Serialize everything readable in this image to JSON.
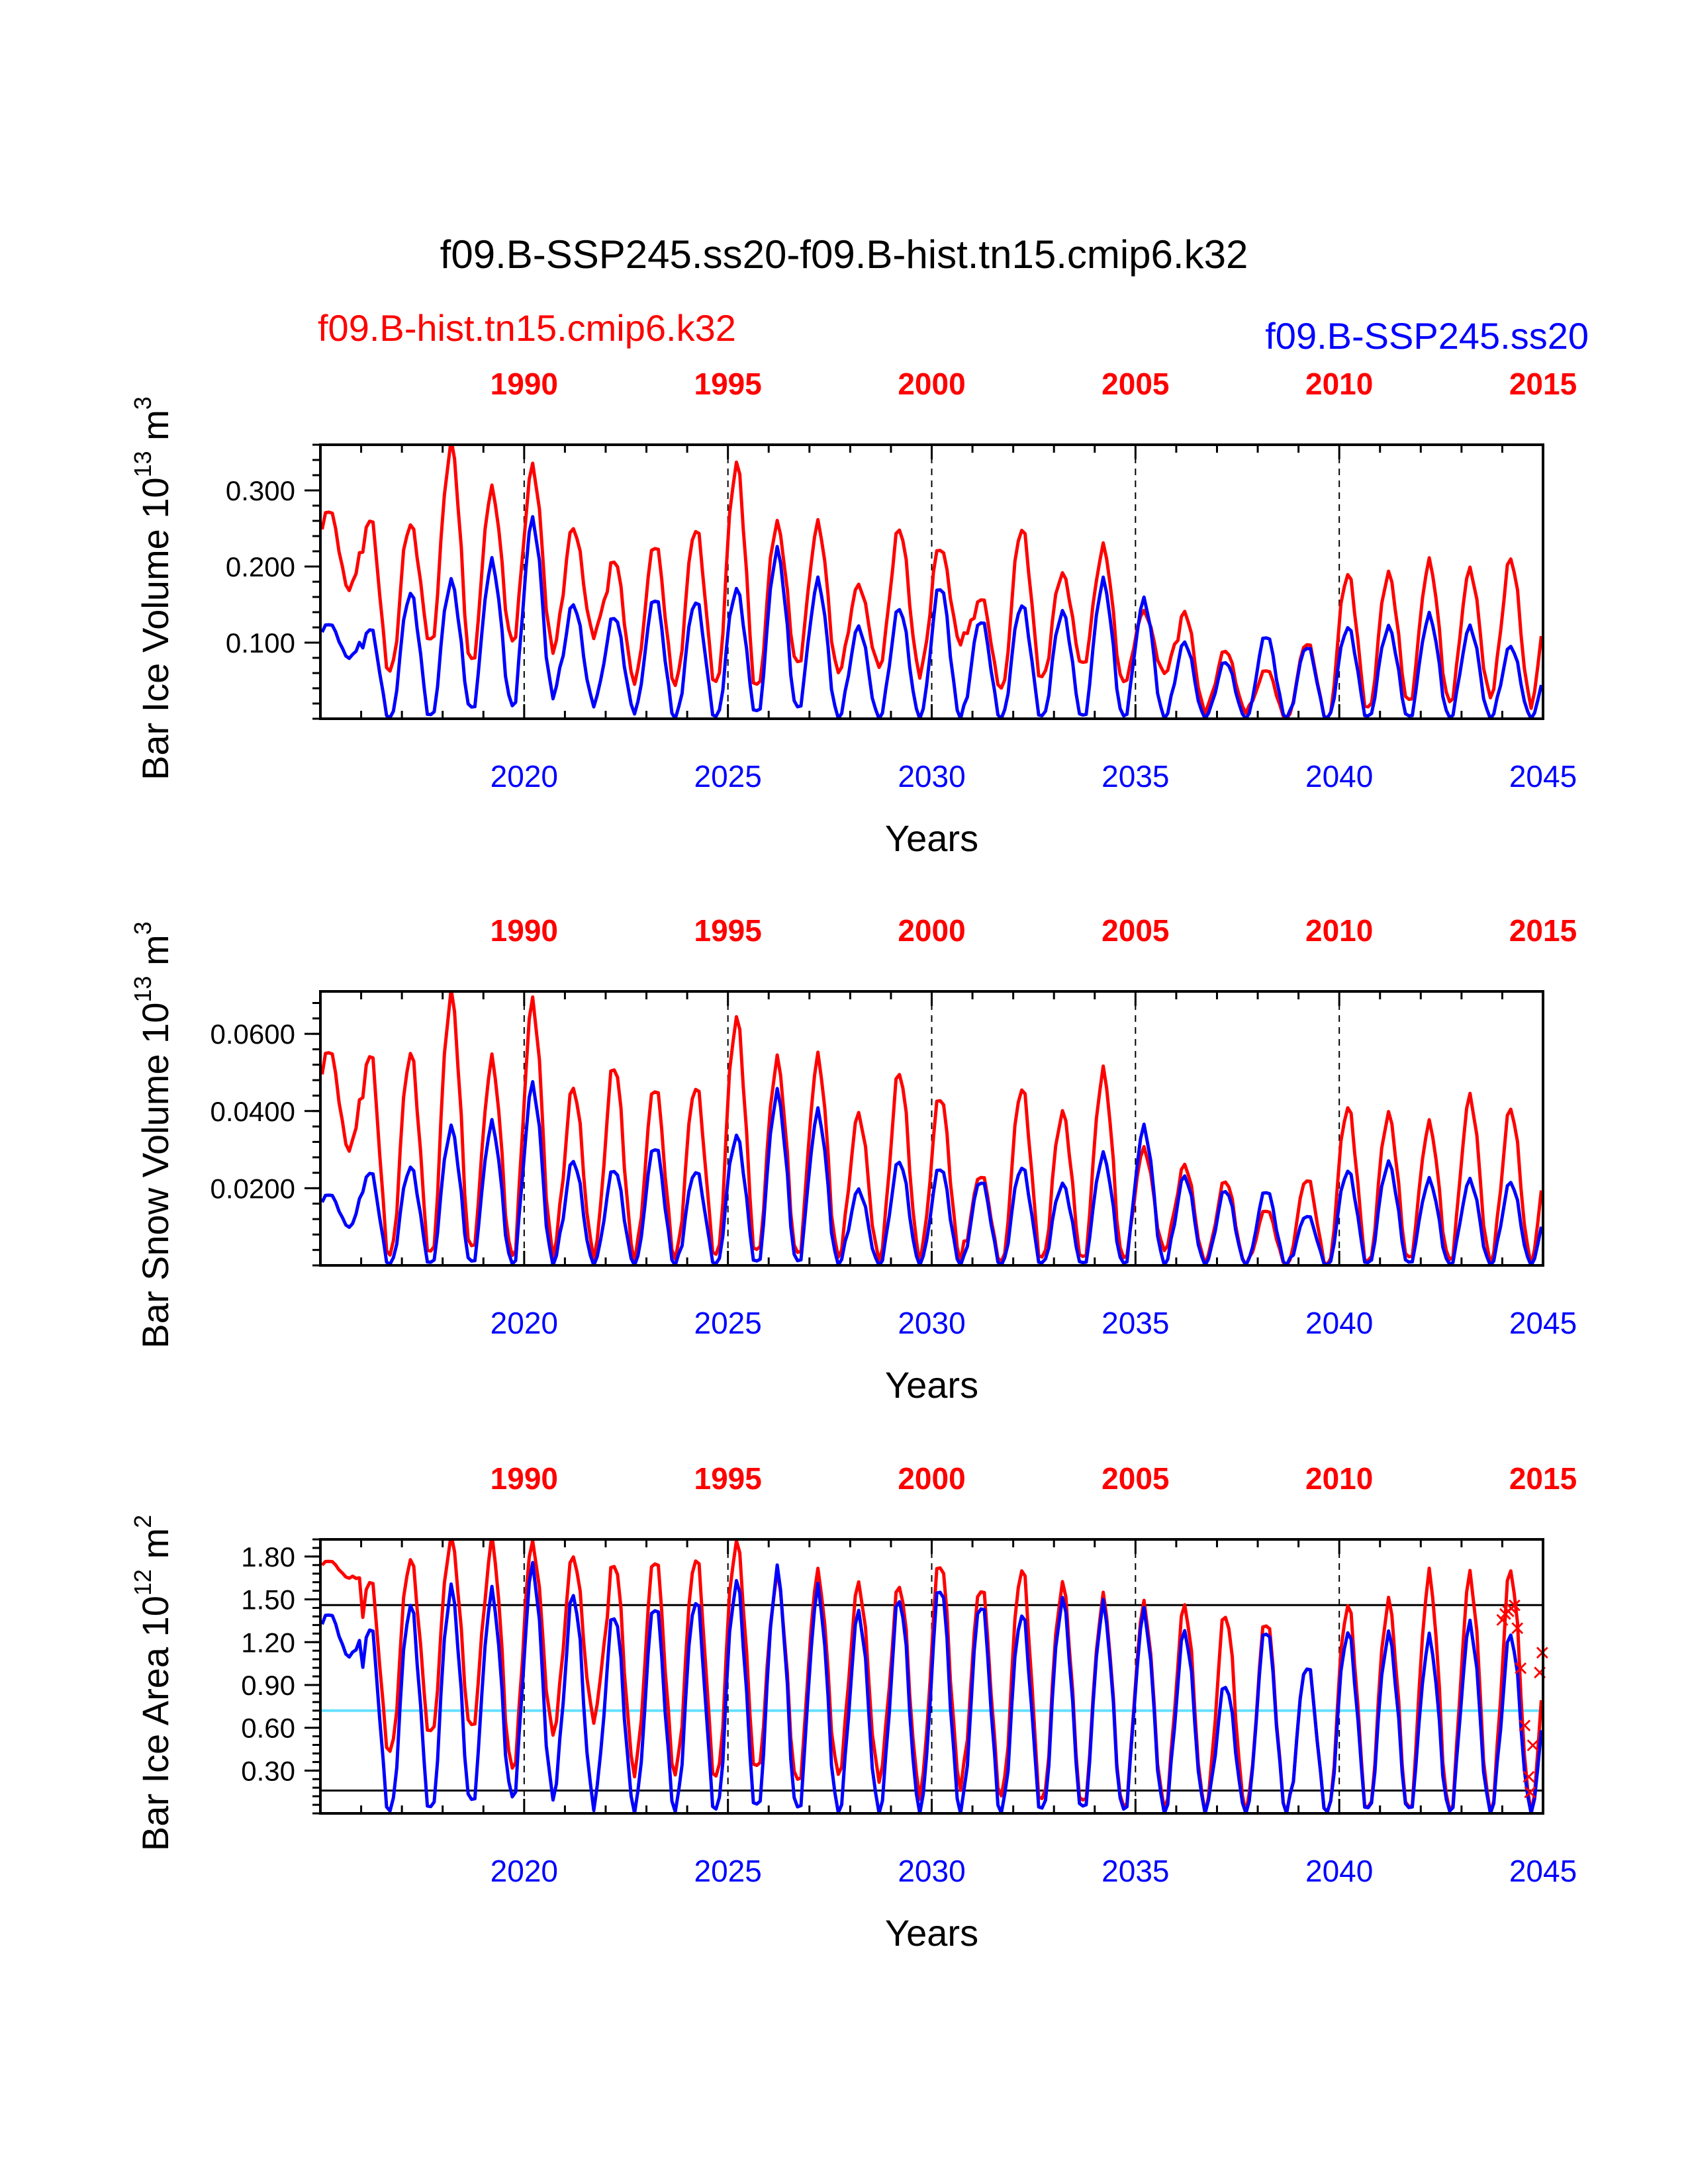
{
  "title": "f09.B-SSP245.ss20-f09.B-hist.tn15.cmip6.k32",
  "colors": {
    "red": "#ff0000",
    "blue": "#0000ff",
    "cyan": "#66e0ff",
    "black": "#000000"
  },
  "legend": {
    "left_case": "f09.B-hist.tn15.cmip6.k32",
    "right_case": "f09.B-SSP245.ss20"
  },
  "chart_data": [
    {
      "type": "line",
      "ylabel": "Bar Ice Volume 10",
      "ylabel_exp": "13",
      "ylabel_unit": " m",
      "ylabel_unit_exp": "3",
      "xlabel": "Years",
      "xlim": [
        2015,
        2045
      ],
      "ylim": [
        0,
        0.36
      ],
      "yticks": [
        "0.100",
        "0.200",
        "0.300"
      ],
      "ytick_values": [
        0.1,
        0.2,
        0.3
      ],
      "bottom_ticks": [
        "2020",
        "2025",
        "2030",
        "2035",
        "2040",
        "2045"
      ],
      "top_ticks": [
        "1990",
        "1995",
        "2000",
        "2005",
        "2010",
        "2015"
      ],
      "series": [
        {
          "name": "f09.B-hist.tn15.cmip6.k32",
          "color": "red",
          "top_year_start": 1985,
          "annual_max": [
            0.275,
            0.265,
            0.255,
            0.36,
            0.3,
            0.33,
            0.25,
            0.21,
            0.23,
            0.25,
            0.335,
            0.255,
            0.255,
            0.175,
            0.25,
            0.225,
            0.16,
            0.25,
            0.19,
            0.225,
            0.14,
            0.14,
            0.09,
            0.065,
            0.1,
            0.19,
            0.19,
            0.205,
            0.195,
            0.21
          ],
          "annual_min": [
            0.17,
            0.06,
            0.1,
            0.07,
            0.1,
            0.09,
            0.11,
            0.05,
            0.045,
            0.045,
            0.035,
            0.07,
            0.06,
            0.07,
            0.06,
            0.1,
            0.04,
            0.05,
            0.07,
            0.045,
            0.06,
            0.01,
            0.01,
            0.0,
            0.0,
            0.01,
            0.02,
            0.02,
            0.03,
            0.02
          ]
        },
        {
          "name": "f09.B-SSP245.ss20",
          "color": "blue",
          "top_year_start": 2015,
          "annual_max": [
            0.125,
            0.12,
            0.165,
            0.18,
            0.205,
            0.26,
            0.15,
            0.135,
            0.16,
            0.155,
            0.17,
            0.22,
            0.18,
            0.12,
            0.145,
            0.175,
            0.13,
            0.15,
            0.14,
            0.18,
            0.155,
            0.1,
            0.075,
            0.11,
            0.095,
            0.12,
            0.12,
            0.135,
            0.12,
            0.095
          ],
          "annual_min": [
            0.08,
            0.0,
            0.0,
            0.01,
            0.015,
            0.03,
            0.02,
            0.01,
            0.0,
            0.0,
            0.005,
            0.01,
            0.0,
            0.0,
            0.0,
            0.0,
            0.0,
            0.0,
            0.0,
            0.0,
            0.0,
            0.0,
            0.0,
            0.0,
            0.0,
            0.0,
            0.0,
            0.0,
            0.0,
            0.0
          ]
        }
      ]
    },
    {
      "type": "line",
      "ylabel": "Bar Snow Volume 10",
      "ylabel_exp": "13",
      "ylabel_unit": " m",
      "ylabel_unit_exp": "3",
      "xlabel": "Years",
      "xlim": [
        2015,
        2045
      ],
      "ylim": [
        0,
        0.071
      ],
      "yticks": [
        "0.0200",
        "0.0400",
        "0.0600"
      ],
      "ytick_values": [
        0.02,
        0.04,
        0.06
      ],
      "bottom_ticks": [
        "2020",
        "2025",
        "2030",
        "2035",
        "2040",
        "2045"
      ],
      "top_ticks": [
        "1990",
        "1995",
        "2000",
        "2005",
        "2010",
        "2015"
      ],
      "series": [
        {
          "name": "f09.B-hist.tn15.cmip6.k32",
          "color": "red",
          "top_year_start": 1985,
          "annual_max": [
            0.056,
            0.0555,
            0.055,
            0.07,
            0.053,
            0.068,
            0.046,
            0.052,
            0.0465,
            0.0465,
            0.064,
            0.053,
            0.0535,
            0.039,
            0.05,
            0.044,
            0.0235,
            0.046,
            0.0395,
            0.05,
            0.03,
            0.026,
            0.022,
            0.0145,
            0.0225,
            0.041,
            0.039,
            0.0365,
            0.0435,
            0.0405
          ],
          "annual_min": [
            0.03,
            0.002,
            0.002,
            0.003,
            0.002,
            0.003,
            0.003,
            0.002,
            0.002,
            0.002,
            0.002,
            0.002,
            0.002,
            0.002,
            0.002,
            0.002,
            0.001,
            0.001,
            0.001,
            0.001,
            0.004,
            0.001,
            0.0,
            0.0,
            0.0,
            0.0,
            0.001,
            0.001,
            0.001,
            0.001
          ]
        },
        {
          "name": "f09.B-SSP245.ss20",
          "color": "blue",
          "top_year_start": 2015,
          "annual_max": [
            0.0185,
            0.0245,
            0.0255,
            0.0355,
            0.0365,
            0.0465,
            0.027,
            0.025,
            0.031,
            0.0245,
            0.0335,
            0.0445,
            0.0395,
            0.0195,
            0.027,
            0.0255,
            0.022,
            0.0255,
            0.021,
            0.0285,
            0.0355,
            0.023,
            0.0195,
            0.0195,
            0.013,
            0.0245,
            0.0265,
            0.022,
            0.022,
            0.0215
          ],
          "annual_min": [
            0.01,
            0.0,
            0.0,
            0.0,
            0.0,
            0.0,
            0.0,
            0.0,
            0.0,
            0.0,
            0.0,
            0.0,
            0.0,
            0.0,
            0.0,
            0.0,
            0.0,
            0.0,
            0.0,
            0.0,
            0.0,
            0.0,
            0.0,
            0.0,
            0.0,
            0.0,
            0.0,
            0.0,
            0.0,
            0.0
          ]
        }
      ]
    },
    {
      "type": "line",
      "ylabel": "Bar Ice Area 10",
      "ylabel_exp": "12",
      "ylabel_unit": " m",
      "ylabel_unit_exp": "2",
      "xlabel": "Years",
      "xlim": [
        2015,
        2045
      ],
      "ylim": [
        0,
        1.92
      ],
      "yticks": [
        "0.30",
        "0.60",
        "0.90",
        "1.20",
        "1.50",
        "1.80"
      ],
      "ytick_values": [
        0.3,
        0.6,
        0.9,
        1.2,
        1.5,
        1.8
      ],
      "hlines": [
        {
          "y": 1.46,
          "color": "black"
        },
        {
          "y": 0.72,
          "color": "cyan"
        },
        {
          "y": 0.16,
          "color": "black"
        }
      ],
      "bottom_ticks": [
        "2020",
        "2025",
        "2030",
        "2035",
        "2040",
        "2045"
      ],
      "top_ticks": [
        "1990",
        "1995",
        "2000",
        "2005",
        "2010",
        "2015"
      ],
      "series": [
        {
          "name": "f09.B-hist.tn15.cmip6.k32",
          "color": "red",
          "top_year_start": 1985,
          "annual_max": [
            1.77,
            1.65,
            1.78,
            1.92,
            1.9,
            1.88,
            1.8,
            1.77,
            1.8,
            1.8,
            1.9,
            1.66,
            1.67,
            1.6,
            1.6,
            1.77,
            1.6,
            1.72,
            1.6,
            1.5,
            1.45,
            1.45,
            1.4,
            1.36,
            1.04,
            1.46,
            1.48,
            1.66,
            1.66,
            1.7
          ],
          "annual_min": [
            1.65,
            0.42,
            0.54,
            0.58,
            0.3,
            0.57,
            0.67,
            0.3,
            0.28,
            0.23,
            0.28,
            0.2,
            0.27,
            0.25,
            0.15,
            0.2,
            0.12,
            0.06,
            0.04,
            0.02,
            0.04,
            0.01,
            0.01,
            0.0,
            0.0,
            0.0,
            0.0,
            0.0,
            0.0,
            0.0
          ]
        },
        {
          "name": "f09.B-SSP245.ss20",
          "color": "blue",
          "top_year_start": 2015,
          "annual_max": [
            1.4,
            1.32,
            1.46,
            1.57,
            1.54,
            1.72,
            1.53,
            1.4,
            1.47,
            1.5,
            1.62,
            1.69,
            1.56,
            1.4,
            1.5,
            1.6,
            1.48,
            1.4,
            1.49,
            1.45,
            1.4,
            1.27,
            0.9,
            1.3,
            1.04,
            1.27,
            1.25,
            1.22,
            1.32,
            1.25
          ],
          "annual_min": [
            1.1,
            0.0,
            0.0,
            0.05,
            0.1,
            0.12,
            0.07,
            0.02,
            0.02,
            0.0,
            0.01,
            0.0,
            0.0,
            0.0,
            0.0,
            0.0,
            0.0,
            0.0,
            0.0,
            0.0,
            0.0,
            0.0,
            0.0,
            0.0,
            0.0,
            0.0,
            0.0,
            0.0,
            0.0,
            0.0
          ]
        }
      ],
      "markers": {
        "color": "red",
        "symbol": "×",
        "points": [
          [
            2044.0,
            1.36
          ],
          [
            2044.07,
            1.4
          ],
          [
            2044.15,
            1.42
          ],
          [
            2044.22,
            1.44
          ],
          [
            2044.3,
            1.46
          ],
          [
            2044.37,
            1.3
          ],
          [
            2044.45,
            1.02
          ],
          [
            2044.55,
            0.62
          ],
          [
            2044.65,
            0.26
          ],
          [
            2044.68,
            0.15
          ],
          [
            2044.75,
            0.48
          ],
          [
            2044.92,
            0.99
          ],
          [
            2044.98,
            1.13
          ]
        ]
      }
    }
  ]
}
